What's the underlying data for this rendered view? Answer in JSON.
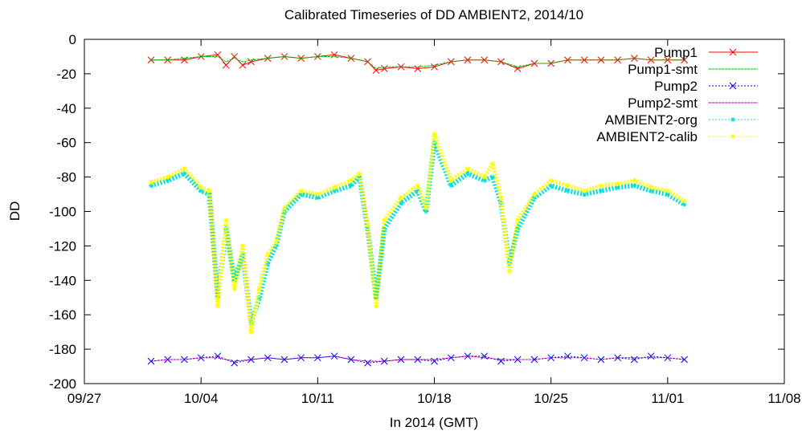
{
  "chart_data": {
    "type": "line",
    "title": "Calibrated Timeseries of DD AMBIENT2, 2014/10",
    "xlabel": "In 2014 (GMT)",
    "ylabel": "DD",
    "xlim": [
      "2014-09-27",
      "2014-11-08"
    ],
    "ylim": [
      -200,
      0
    ],
    "x_ticks": [
      "09/27",
      "10/04",
      "10/11",
      "10/18",
      "10/25",
      "11/01",
      "11/08"
    ],
    "y_ticks": [
      0,
      -20,
      -40,
      -60,
      -80,
      -100,
      -120,
      -140,
      -160,
      -180,
      -200
    ],
    "legend_position": "top-right",
    "series": [
      {
        "name": "Pump1",
        "color": "#ff0000",
        "marker": "x",
        "x": [
          "2014-10-01",
          "2014-10-02",
          "2014-10-03",
          "2014-10-04",
          "2014-10-05",
          "2014-10-05T12",
          "2014-10-06",
          "2014-10-06T12",
          "2014-10-07",
          "2014-10-08",
          "2014-10-09",
          "2014-10-10",
          "2014-10-11",
          "2014-10-12",
          "2014-10-13",
          "2014-10-14",
          "2014-10-14T12",
          "2014-10-15",
          "2014-10-16",
          "2014-10-17",
          "2014-10-18",
          "2014-10-19",
          "2014-10-20",
          "2014-10-21",
          "2014-10-22",
          "2014-10-23",
          "2014-10-24",
          "2014-10-25",
          "2014-10-26",
          "2014-10-27",
          "2014-10-28",
          "2014-10-29",
          "2014-10-30",
          "2014-10-31",
          "2014-11-01",
          "2014-11-02"
        ],
        "y": [
          -12,
          -12,
          -12,
          -10,
          -9,
          -15,
          -10,
          -15,
          -13,
          -11,
          -10,
          -11,
          -10,
          -9,
          -11,
          -13,
          -18,
          -17,
          -16,
          -17,
          -16,
          -13,
          -12,
          -12,
          -13,
          -17,
          -14,
          -14,
          -12,
          -12,
          -12,
          -12,
          -11,
          -12,
          -12,
          -12
        ]
      },
      {
        "name": "Pump1-smt",
        "color": "#00c000",
        "marker": "none",
        "x": [
          "2014-10-01",
          "2014-10-02",
          "2014-10-03",
          "2014-10-04",
          "2014-10-05",
          "2014-10-05T12",
          "2014-10-06",
          "2014-10-06T12",
          "2014-10-07",
          "2014-10-08",
          "2014-10-09",
          "2014-10-10",
          "2014-10-11",
          "2014-10-12",
          "2014-10-13",
          "2014-10-14",
          "2014-10-14T12",
          "2014-10-15",
          "2014-10-16",
          "2014-10-17",
          "2014-10-18",
          "2014-10-19",
          "2014-10-20",
          "2014-10-21",
          "2014-10-22",
          "2014-10-23",
          "2014-10-24",
          "2014-10-25",
          "2014-10-26",
          "2014-10-27",
          "2014-10-28",
          "2014-10-29",
          "2014-10-30",
          "2014-10-31",
          "2014-11-01",
          "2014-11-02"
        ],
        "y": [
          -12,
          -12,
          -11,
          -10,
          -10,
          -13,
          -11,
          -13,
          -12,
          -11,
          -10,
          -11,
          -10,
          -10,
          -11,
          -13,
          -17,
          -16,
          -16,
          -16,
          -15,
          -13,
          -12,
          -12,
          -13,
          -16,
          -14,
          -14,
          -12,
          -12,
          -12,
          -12,
          -11,
          -12,
          -12,
          -12
        ]
      },
      {
        "name": "Pump2",
        "color": "#0000ff",
        "marker": "x",
        "x": [
          "2014-10-01",
          "2014-10-02",
          "2014-10-03",
          "2014-10-04",
          "2014-10-05",
          "2014-10-06",
          "2014-10-07",
          "2014-10-08",
          "2014-10-09",
          "2014-10-10",
          "2014-10-11",
          "2014-10-12",
          "2014-10-13",
          "2014-10-14",
          "2014-10-15",
          "2014-10-16",
          "2014-10-17",
          "2014-10-18",
          "2014-10-19",
          "2014-10-20",
          "2014-10-21",
          "2014-10-22",
          "2014-10-23",
          "2014-10-24",
          "2014-10-25",
          "2014-10-26",
          "2014-10-27",
          "2014-10-28",
          "2014-10-29",
          "2014-10-30",
          "2014-10-31",
          "2014-11-01",
          "2014-11-02"
        ],
        "y": [
          -187,
          -186,
          -186,
          -185,
          -184,
          -188,
          -186,
          -185,
          -186,
          -185,
          -185,
          -184,
          -186,
          -188,
          -187,
          -186,
          -186,
          -187,
          -185,
          -184,
          -184,
          -187,
          -186,
          -186,
          -185,
          -184,
          -185,
          -186,
          -185,
          -186,
          -184,
          -185,
          -186
        ]
      },
      {
        "name": "Pump2-smt",
        "color": "#a000a0",
        "marker": "none",
        "x": [
          "2014-10-01",
          "2014-10-02",
          "2014-10-03",
          "2014-10-04",
          "2014-10-05",
          "2014-10-06",
          "2014-10-07",
          "2014-10-08",
          "2014-10-09",
          "2014-10-10",
          "2014-10-11",
          "2014-10-12",
          "2014-10-13",
          "2014-10-14",
          "2014-10-15",
          "2014-10-16",
          "2014-10-17",
          "2014-10-18",
          "2014-10-19",
          "2014-10-20",
          "2014-10-21",
          "2014-10-22",
          "2014-10-23",
          "2014-10-24",
          "2014-10-25",
          "2014-10-26",
          "2014-10-27",
          "2014-10-28",
          "2014-10-29",
          "2014-10-30",
          "2014-10-31",
          "2014-11-01",
          "2014-11-02"
        ],
        "y": [
          -187,
          -186,
          -186,
          -185,
          -185,
          -187,
          -186,
          -185,
          -186,
          -185,
          -185,
          -184,
          -186,
          -187,
          -187,
          -186,
          -186,
          -186,
          -185,
          -184,
          -185,
          -186,
          -186,
          -186,
          -185,
          -185,
          -185,
          -186,
          -185,
          -185,
          -185,
          -185,
          -186
        ]
      },
      {
        "name": "AMBIENT2-org",
        "color": "#00e0e0",
        "marker": "*",
        "x": [
          "2014-10-01",
          "2014-10-02",
          "2014-10-03",
          "2014-10-04",
          "2014-10-04T12",
          "2014-10-05",
          "2014-10-05T12",
          "2014-10-06",
          "2014-10-06T12",
          "2014-10-07",
          "2014-10-07T12",
          "2014-10-08",
          "2014-10-08T12",
          "2014-10-09",
          "2014-10-10",
          "2014-10-11",
          "2014-10-12",
          "2014-10-13",
          "2014-10-13T12",
          "2014-10-14",
          "2014-10-14T12",
          "2014-10-15",
          "2014-10-16",
          "2014-10-17",
          "2014-10-17T12",
          "2014-10-18",
          "2014-10-19",
          "2014-10-20",
          "2014-10-21",
          "2014-10-21T12",
          "2014-10-22",
          "2014-10-22T12",
          "2014-10-23",
          "2014-10-24",
          "2014-10-25",
          "2014-10-26",
          "2014-10-27",
          "2014-10-28",
          "2014-10-29",
          "2014-10-30",
          "2014-10-31",
          "2014-11-01",
          "2014-11-02"
        ],
        "y": [
          -85,
          -82,
          -78,
          -88,
          -90,
          -150,
          -110,
          -140,
          -125,
          -165,
          -150,
          -130,
          -120,
          -100,
          -90,
          -92,
          -88,
          -85,
          -80,
          -110,
          -150,
          -110,
          -95,
          -88,
          -100,
          -60,
          -85,
          -78,
          -82,
          -80,
          -95,
          -130,
          -110,
          -92,
          -85,
          -88,
          -90,
          -88,
          -86,
          -85,
          -88,
          -90,
          -96
        ]
      },
      {
        "name": "AMBIENT2-calib",
        "color": "#ffff00",
        "marker": "*",
        "x": [
          "2014-10-01",
          "2014-10-02",
          "2014-10-03",
          "2014-10-04",
          "2014-10-04T12",
          "2014-10-05",
          "2014-10-05T12",
          "2014-10-06",
          "2014-10-06T12",
          "2014-10-07",
          "2014-10-07T12",
          "2014-10-08",
          "2014-10-08T12",
          "2014-10-09",
          "2014-10-10",
          "2014-10-11",
          "2014-10-12",
          "2014-10-13",
          "2014-10-13T12",
          "2014-10-14",
          "2014-10-14T12",
          "2014-10-15",
          "2014-10-16",
          "2014-10-17",
          "2014-10-17T12",
          "2014-10-18",
          "2014-10-19",
          "2014-10-20",
          "2014-10-21",
          "2014-10-21T12",
          "2014-10-22",
          "2014-10-22T12",
          "2014-10-23",
          "2014-10-24",
          "2014-10-25",
          "2014-10-26",
          "2014-10-27",
          "2014-10-28",
          "2014-10-29",
          "2014-10-30",
          "2014-10-31",
          "2014-11-01",
          "2014-11-02"
        ],
        "y": [
          -83,
          -80,
          -75,
          -86,
          -88,
          -155,
          -105,
          -145,
          -120,
          -170,
          -145,
          -125,
          -118,
          -98,
          -88,
          -90,
          -86,
          -82,
          -78,
          -108,
          -155,
          -105,
          -92,
          -85,
          -98,
          -55,
          -82,
          -75,
          -80,
          -72,
          -92,
          -135,
          -105,
          -90,
          -82,
          -85,
          -88,
          -85,
          -84,
          -82,
          -86,
          -88,
          -94
        ]
      }
    ]
  }
}
